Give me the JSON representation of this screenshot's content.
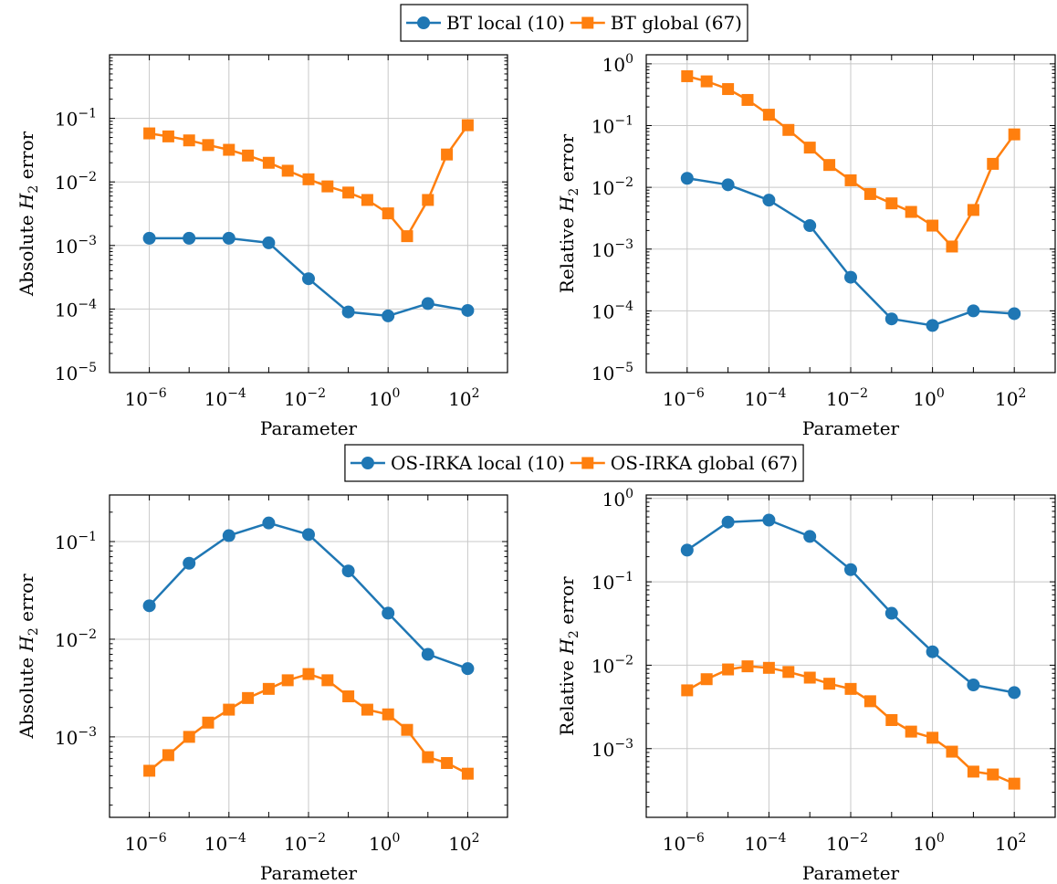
{
  "colors": {
    "blue": "#1f77b4",
    "orange": "#ff7f0e",
    "grid": "#c8c8c8"
  },
  "legends": [
    {
      "entries": [
        {
          "label": "BT local (10)",
          "color": "#1f77b4",
          "marker": "circle"
        },
        {
          "label": "BT global (67)",
          "color": "#ff7f0e",
          "marker": "square"
        }
      ]
    },
    {
      "entries": [
        {
          "label": "OS-IRKA local (10)",
          "color": "#1f77b4",
          "marker": "circle"
        },
        {
          "label": "OS-IRKA global (67)",
          "color": "#ff7f0e",
          "marker": "square"
        }
      ]
    }
  ],
  "chart_data": [
    {
      "type": "line",
      "xscale": "log",
      "yscale": "log",
      "xlabel": "Parameter",
      "ylabel": "Absolute H2 error",
      "xlim": [
        1e-07,
        1000
      ],
      "ylim": [
        1e-05,
        1
      ],
      "yticks": [
        1e-05,
        0.0001,
        0.001,
        0.01,
        0.1
      ],
      "grid": true,
      "legend": "top-center",
      "series": [
        {
          "name": "BT local (10)",
          "marker": "circle",
          "color": "#1f77b4",
          "x": [
            1e-06,
            1e-05,
            0.0001,
            0.001,
            0.01,
            0.1,
            1.0,
            10.0,
            100.0
          ],
          "y": [
            0.0013,
            0.0013,
            0.0013,
            0.0011,
            0.0003,
            9e-05,
            7.8e-05,
            0.000122,
            9.5e-05
          ]
        },
        {
          "name": "BT global (67)",
          "marker": "square",
          "color": "#ff7f0e",
          "x": [
            1e-06,
            3e-06,
            1e-05,
            3e-05,
            0.0001,
            0.0003,
            0.001,
            0.003,
            0.01,
            0.03,
            0.1,
            0.3,
            1.0,
            3.0,
            10.0,
            30.0,
            100.0
          ],
          "y": [
            0.058,
            0.052,
            0.045,
            0.038,
            0.032,
            0.026,
            0.02,
            0.015,
            0.011,
            0.0085,
            0.0068,
            0.0052,
            0.0032,
            0.0014,
            0.0052,
            0.027,
            0.078
          ]
        }
      ]
    },
    {
      "type": "line",
      "xscale": "log",
      "yscale": "log",
      "xlabel": "Parameter",
      "ylabel": "Relative H2 error",
      "xlim": [
        1e-07,
        1000
      ],
      "ylim": [
        1e-05,
        1.4
      ],
      "yticks": [
        1e-05,
        0.0001,
        0.001,
        0.01,
        0.1,
        1
      ],
      "grid": true,
      "legend": "top-center",
      "series": [
        {
          "name": "BT local (10)",
          "marker": "circle",
          "color": "#1f77b4",
          "x": [
            1e-06,
            1e-05,
            0.0001,
            0.001,
            0.01,
            0.1,
            1.0,
            10.0,
            100.0
          ],
          "y": [
            0.014,
            0.011,
            0.0062,
            0.0024,
            0.00035,
            7.4e-05,
            5.8e-05,
            0.0001,
            9e-05
          ]
        },
        {
          "name": "BT global (67)",
          "marker": "square",
          "color": "#ff7f0e",
          "x": [
            1e-06,
            3e-06,
            1e-05,
            3e-05,
            0.0001,
            0.0003,
            0.001,
            0.003,
            0.01,
            0.03,
            0.1,
            0.3,
            1.0,
            3.0,
            10.0,
            30.0,
            100.0
          ],
          "y": [
            0.63,
            0.52,
            0.39,
            0.26,
            0.15,
            0.085,
            0.044,
            0.023,
            0.013,
            0.0078,
            0.0055,
            0.004,
            0.0024,
            0.0011,
            0.0043,
            0.024,
            0.072
          ]
        }
      ]
    },
    {
      "type": "line",
      "xscale": "log",
      "yscale": "log",
      "xlabel": "Parameter",
      "ylabel": "Absolute H2 error",
      "xlim": [
        1e-07,
        1000
      ],
      "ylim": [
        0.00015,
        0.3
      ],
      "yticks": [
        0.001,
        0.01,
        0.1
      ],
      "grid": true,
      "legend": "top-center",
      "series": [
        {
          "name": "OS-IRKA local (10)",
          "marker": "circle",
          "color": "#1f77b4",
          "x": [
            1e-06,
            1e-05,
            0.0001,
            0.001,
            0.01,
            0.1,
            1.0,
            10.0,
            100.0
          ],
          "y": [
            0.022,
            0.06,
            0.115,
            0.155,
            0.118,
            0.05,
            0.0185,
            0.007,
            0.005
          ]
        },
        {
          "name": "OS-IRKA global (67)",
          "marker": "square",
          "color": "#ff7f0e",
          "x": [
            1e-06,
            3e-06,
            1e-05,
            3e-05,
            0.0001,
            0.0003,
            0.001,
            0.003,
            0.01,
            0.03,
            0.1,
            0.3,
            1.0,
            3.0,
            10.0,
            30.0,
            100.0
          ],
          "y": [
            0.00045,
            0.00065,
            0.001,
            0.0014,
            0.0019,
            0.0025,
            0.0031,
            0.0038,
            0.0044,
            0.0038,
            0.0026,
            0.0019,
            0.0017,
            0.00118,
            0.00062,
            0.00054,
            0.00042
          ]
        }
      ]
    },
    {
      "type": "line",
      "xscale": "log",
      "yscale": "log",
      "xlabel": "Parameter",
      "ylabel": "Relative H2 error",
      "xlim": [
        1e-07,
        1000
      ],
      "ylim": [
        0.00015,
        1.1
      ],
      "yticks": [
        0.001,
        0.01,
        0.1,
        1
      ],
      "grid": true,
      "legend": "top-center",
      "series": [
        {
          "name": "OS-IRKA local (10)",
          "marker": "circle",
          "color": "#1f77b4",
          "x": [
            1e-06,
            1e-05,
            0.0001,
            0.001,
            0.01,
            0.1,
            1.0,
            10.0,
            100.0
          ],
          "y": [
            0.24,
            0.52,
            0.55,
            0.35,
            0.14,
            0.042,
            0.0145,
            0.0058,
            0.0047
          ]
        },
        {
          "name": "OS-IRKA global (67)",
          "marker": "square",
          "color": "#ff7f0e",
          "x": [
            1e-06,
            3e-06,
            1e-05,
            3e-05,
            0.0001,
            0.0003,
            0.001,
            0.003,
            0.01,
            0.03,
            0.1,
            0.3,
            1.0,
            3.0,
            10.0,
            30.0,
            100.0
          ],
          "y": [
            0.005,
            0.0068,
            0.0089,
            0.0097,
            0.0093,
            0.0083,
            0.0071,
            0.006,
            0.0052,
            0.0037,
            0.0022,
            0.0016,
            0.00135,
            0.00092,
            0.00053,
            0.00049,
            0.00038
          ]
        }
      ]
    }
  ]
}
